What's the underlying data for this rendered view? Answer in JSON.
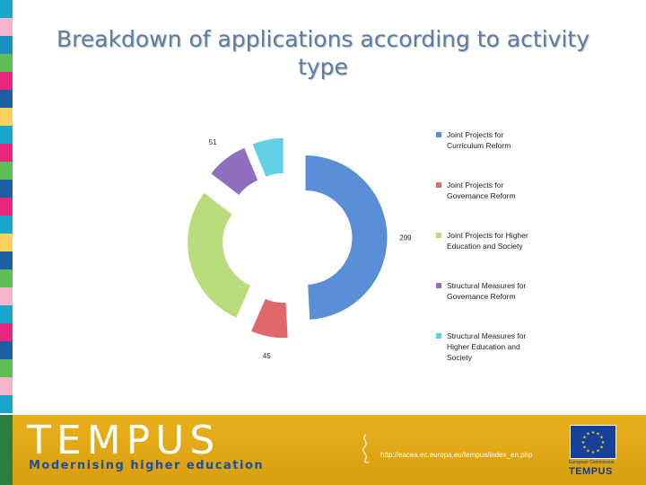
{
  "slide": {
    "title": "Breakdown of applications according to activity type",
    "stripe_colors": [
      "#1aa3cc",
      "#f4b6cf",
      "#1a8fc4",
      "#5bbf56",
      "#e8257f",
      "#1f5fa8",
      "#f8d05a",
      "#1aa3cc",
      "#e8257f",
      "#5bbf56",
      "#1f5fa8",
      "#e8257f",
      "#1aa3cc",
      "#f8d05a",
      "#1f5fa8",
      "#5bbf56",
      "#f4b6cf",
      "#1aa3cc",
      "#e8257f",
      "#1f5fa8",
      "#5bbf56",
      "#f4b6cf",
      "#1aa3cc"
    ]
  },
  "chart_data": {
    "type": "pie",
    "variant": "exploded-donut",
    "categories": [
      "Joint Projects for Curriculum Reform",
      "Joint Projects for Governance Reform",
      "Joint Projects for Higher Education and Society",
      "Structural Measures for Governance Reform",
      "Structural Measures for Higher Education and Society"
    ],
    "values": [
      299,
      45,
      175,
      51,
      38
    ],
    "colors": [
      "#5a8fd8",
      "#e0676a",
      "#b9dd7c",
      "#8f6fc0",
      "#62cfe6"
    ],
    "legend_position": "right"
  },
  "footer": {
    "logo_text": "TEMPUS",
    "tagline": "Modernising higher education",
    "url": "http://eacea.ec.europa.eu/tempus/index_en.php",
    "eu_caption": "European Commission",
    "eu_logo_text": "TEMPUS",
    "colors": {
      "band": "#e5a814",
      "logo": "#ffffff",
      "tagline": "#1d4f9c",
      "flag": "#16419a",
      "stars": "#ffd200"
    }
  }
}
